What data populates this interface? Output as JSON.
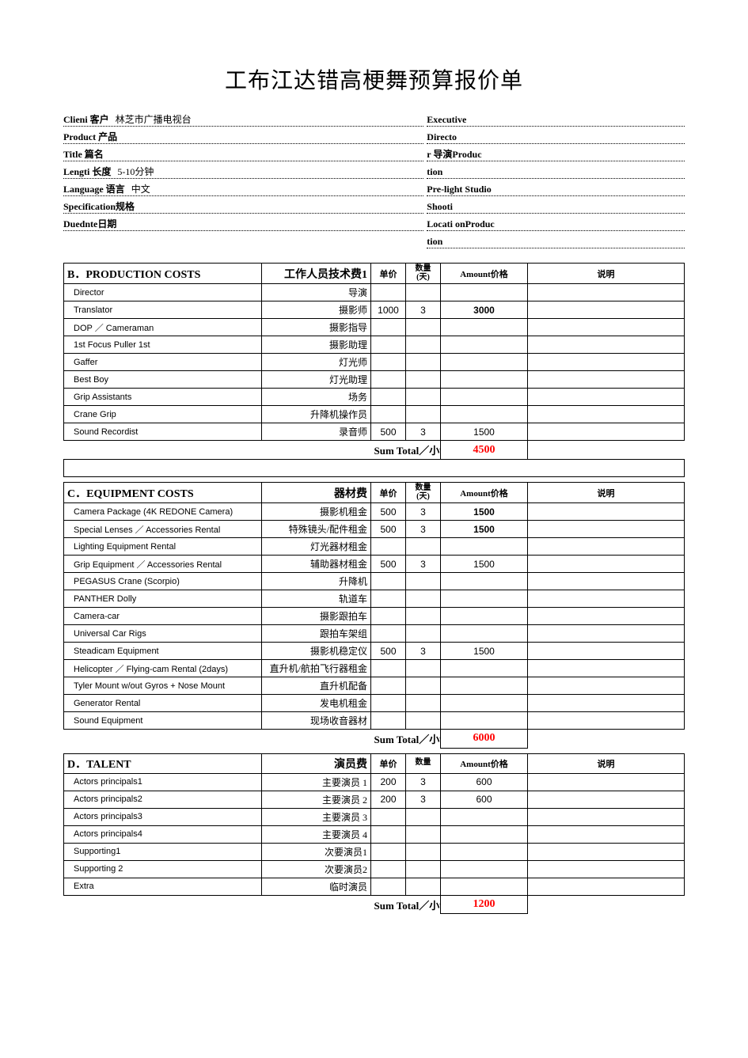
{
  "colors": {
    "text": "#000000",
    "bg": "#ffffff",
    "subtotal": "#ff0000",
    "border": "#000000"
  },
  "fonts": {
    "title_size_pt": 22,
    "body_size_pt": 10,
    "header_size_pt": 12
  },
  "doc_title": "工布江达错高梗舞预算报价单",
  "header_left": [
    {
      "label": "Clieni  客户",
      "value": "林芝市广播电视台"
    },
    {
      "label": "Product  产品",
      "value": ""
    },
    {
      "label": "Title  篇名",
      "value": ""
    },
    {
      "label": "Lengti  长度",
      "value": "5-10分钟"
    },
    {
      "label": "Language  语言",
      "value": "中文"
    },
    {
      "label": "Specification规格",
      "value": ""
    },
    {
      "label": "Duednte日期",
      "value": ""
    }
  ],
  "header_right": [
    {
      "label": "Executive",
      "value": ""
    },
    {
      "label": "Directo",
      "value": ""
    },
    {
      "label": "r  导演Produc",
      "value": ""
    },
    {
      "label": "tion",
      "value": ""
    },
    {
      "label": "Pre-light Studio",
      "value": ""
    },
    {
      "label": "Shooti",
      "value": ""
    },
    {
      "label": "Locati onProduc",
      "value": ""
    },
    {
      "label": "tion",
      "value": ""
    }
  ],
  "col_hdr": {
    "unit": "单价",
    "qty": "数量 (天)",
    "amount": "Amount价格",
    "note": "说明"
  },
  "subtotal_label": "Sum Total／小计",
  "sections": [
    {
      "title_en": "B．PRODUCTION  COSTS",
      "title_cn": "工作人员技术费1",
      "rows": [
        {
          "en": "Director",
          "cn": "导演",
          "unit": "",
          "qty": "",
          "amt": "",
          "amt_bold": false
        },
        {
          "en": "Translator",
          "cn": "摄影师",
          "unit": "1000",
          "qty": "3",
          "amt": "3000",
          "amt_bold": true
        },
        {
          "en": "DOP ／ Cameraman",
          "cn": "摄影指导",
          "unit": "",
          "qty": "",
          "amt": "",
          "amt_bold": false
        },
        {
          "en": "1st  Focus  Puller  1st",
          "cn": "摄影助理",
          "unit": "",
          "qty": "",
          "amt": "",
          "amt_bold": false
        },
        {
          "en": "Gaffer",
          "cn": "灯光师",
          "unit": "",
          "qty": "",
          "amt": "",
          "amt_bold": false
        },
        {
          "en": "Best  Boy",
          "cn": "灯光助理",
          "unit": "",
          "qty": "",
          "amt": "",
          "amt_bold": false
        },
        {
          "en": "Grip  Assistants",
          "cn": "场务",
          "unit": "",
          "qty": "",
          "amt": "",
          "amt_bold": false
        },
        {
          "en": "Crane  Grip",
          "cn": "升降机操作员",
          "unit": "",
          "qty": "",
          "amt": "",
          "amt_bold": false
        },
        {
          "en": "Sound  Recordist",
          "cn": "录音师",
          "unit": "500",
          "qty": "3",
          "amt": "1500",
          "amt_bold": false
        }
      ],
      "subtotal": "4500",
      "gap_after": true
    },
    {
      "title_en": "C．EQUIPMENT  COSTS",
      "title_cn": "器材费",
      "rows": [
        {
          "en": "Camera  Package  (4K  REDONE  Camera)",
          "cn": "摄影机租金",
          "unit": "500",
          "qty": "3",
          "amt": "1500",
          "amt_bold": true
        },
        {
          "en": "Special  Lenses ／ Accessories  Rental",
          "cn": "特殊镜头/配件租金",
          "unit": "500",
          "qty": "3",
          "amt": "1500",
          "amt_bold": true
        },
        {
          "en": "Lighting  Equipment  Rental",
          "cn": "灯光器材租金",
          "unit": "",
          "qty": "",
          "amt": "",
          "amt_bold": false
        },
        {
          "en": "Grip  Equipment ／ Accessories  Rental",
          "cn": "辅助器材租金",
          "unit": "500",
          "qty": "3",
          "amt": "1500",
          "amt_bold": false
        },
        {
          "en": "PEGASUS  Crane  (Scorpio)",
          "cn": "升降机",
          "unit": "",
          "qty": "",
          "amt": "",
          "amt_bold": false
        },
        {
          "en": "PANTHER  Dolly",
          "cn": "轨道车",
          "unit": "",
          "qty": "",
          "amt": "",
          "amt_bold": false
        },
        {
          "en": "Camera-car",
          "cn": "摄影跟拍车",
          "unit": "",
          "qty": "",
          "amt": "",
          "amt_bold": false
        },
        {
          "en": "Universal  Car  Rigs",
          "cn": "跟拍车架组",
          "unit": "",
          "qty": "",
          "amt": "",
          "amt_bold": false
        },
        {
          "en": "Steadicam  Equipment",
          "cn": "摄影机稳定仪",
          "unit": "500",
          "qty": "3",
          "amt": "1500",
          "amt_bold": false
        },
        {
          "en": "Helicopter ／ Flying-cam  Rental  (2days)",
          "cn": "直升机/航拍飞行器租金",
          "unit": "",
          "qty": "",
          "amt": "",
          "amt_bold": false
        },
        {
          "en": "Tyler  Mount  w/out  Gyros  +  Nose  Mount",
          "cn": "直升机配备",
          "unit": "",
          "qty": "",
          "amt": "",
          "amt_bold": false
        },
        {
          "en": "Generator  Rental",
          "cn": "发电机租金",
          "unit": "",
          "qty": "",
          "amt": "",
          "amt_bold": false
        },
        {
          "en": "Sound  Equipment",
          "cn": "现场收音器材",
          "unit": "",
          "qty": "",
          "amt": "",
          "amt_bold": false
        }
      ],
      "subtotal": "6000",
      "gap_after": false
    },
    {
      "title_en": "D．TALENT",
      "title_cn": "演员费",
      "qty_label_override": "数量",
      "rows": [
        {
          "en": "Actors  principals1",
          "cn": "主要演员 1",
          "unit": "200",
          "qty": "3",
          "amt": "600",
          "amt_bold": false
        },
        {
          "en": "Actors  principals2",
          "cn": "主要演员 2",
          "unit": "200",
          "qty": "3",
          "amt": "600",
          "amt_bold": false
        },
        {
          "en": "Actors  principals3",
          "cn": "主要演员 3",
          "unit": "",
          "qty": "",
          "amt": "",
          "amt_bold": false
        },
        {
          "en": "Actors  principals4",
          "cn": "主要演员 4",
          "unit": "",
          "qty": "",
          "amt": "",
          "amt_bold": false
        },
        {
          "en": "Supporting1",
          "cn": "次要演员1",
          "unit": "",
          "qty": "",
          "amt": "",
          "amt_bold": false
        },
        {
          "en": "Supporting  2",
          "cn": "次要演员2",
          "unit": "",
          "qty": "",
          "amt": "",
          "amt_bold": false
        },
        {
          "en": "Extra",
          "cn": "临时演员",
          "unit": "",
          "qty": "",
          "amt": "",
          "amt_bold": false
        }
      ],
      "subtotal": "1200",
      "gap_after": false
    }
  ]
}
